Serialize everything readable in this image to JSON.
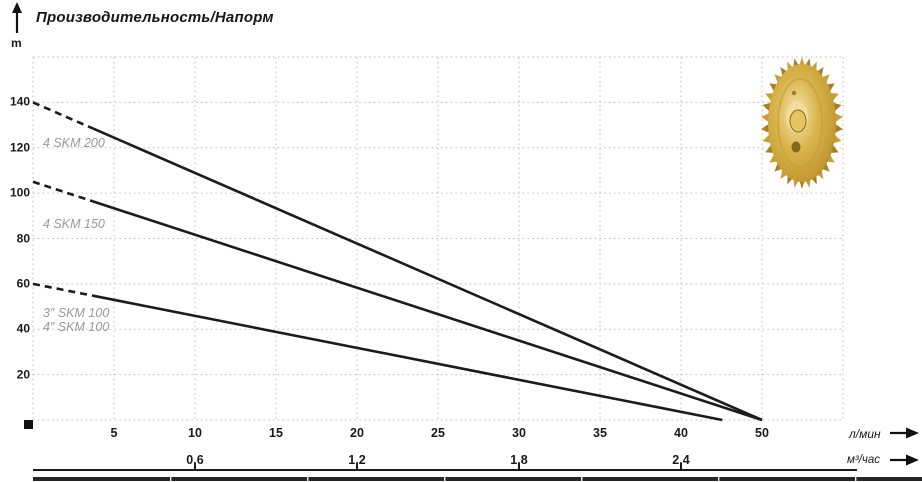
{
  "chart_data": {
    "type": "line",
    "title": "Производительность/Напорм",
    "y_axis": {
      "unit": "m",
      "ticks": [
        20,
        40,
        60,
        80,
        100,
        120,
        140
      ],
      "range": [
        0,
        160
      ]
    },
    "x_axis_primary": {
      "unit": "л/мин",
      "ticks": [
        "5",
        "10",
        "15",
        "20",
        "25",
        "30",
        "35",
        "40",
        "50"
      ]
    },
    "x_axis_secondary": {
      "unit": "м³/час",
      "ticks": [
        "0,6",
        "1,2",
        "1,8",
        "2,4"
      ]
    },
    "grid": true,
    "legend_position": "on-curve-left",
    "series": [
      {
        "labels": [
          "4 SKM 200"
        ],
        "points_flow_head": [
          [
            0,
            140
          ],
          [
            50,
            0
          ]
        ],
        "dashed_until_flow": 4
      },
      {
        "labels": [
          "4 SKM 150"
        ],
        "points_flow_head": [
          [
            0,
            105
          ],
          [
            50,
            0
          ]
        ],
        "dashed_until_flow": 4
      },
      {
        "labels": [
          "3″ SKM 100",
          "4″ SKM 100"
        ],
        "points_flow_head": [
          [
            0,
            60
          ],
          [
            45,
            0
          ]
        ],
        "dashed_until_flow": 4
      }
    ],
    "colors": {
      "curve": "#1c1c1c",
      "grid": "#bfbfbf",
      "series_label": "#9a9a9a",
      "text": "#1a1a1a",
      "impeller_gold_light": "#f6e7ae",
      "impeller_gold_mid": "#d9b44c",
      "impeller_gold_dark": "#9c7820"
    },
    "decorations": {
      "origin_marker": "black-square",
      "impeller_photo_alt": "brass pump impeller"
    }
  }
}
